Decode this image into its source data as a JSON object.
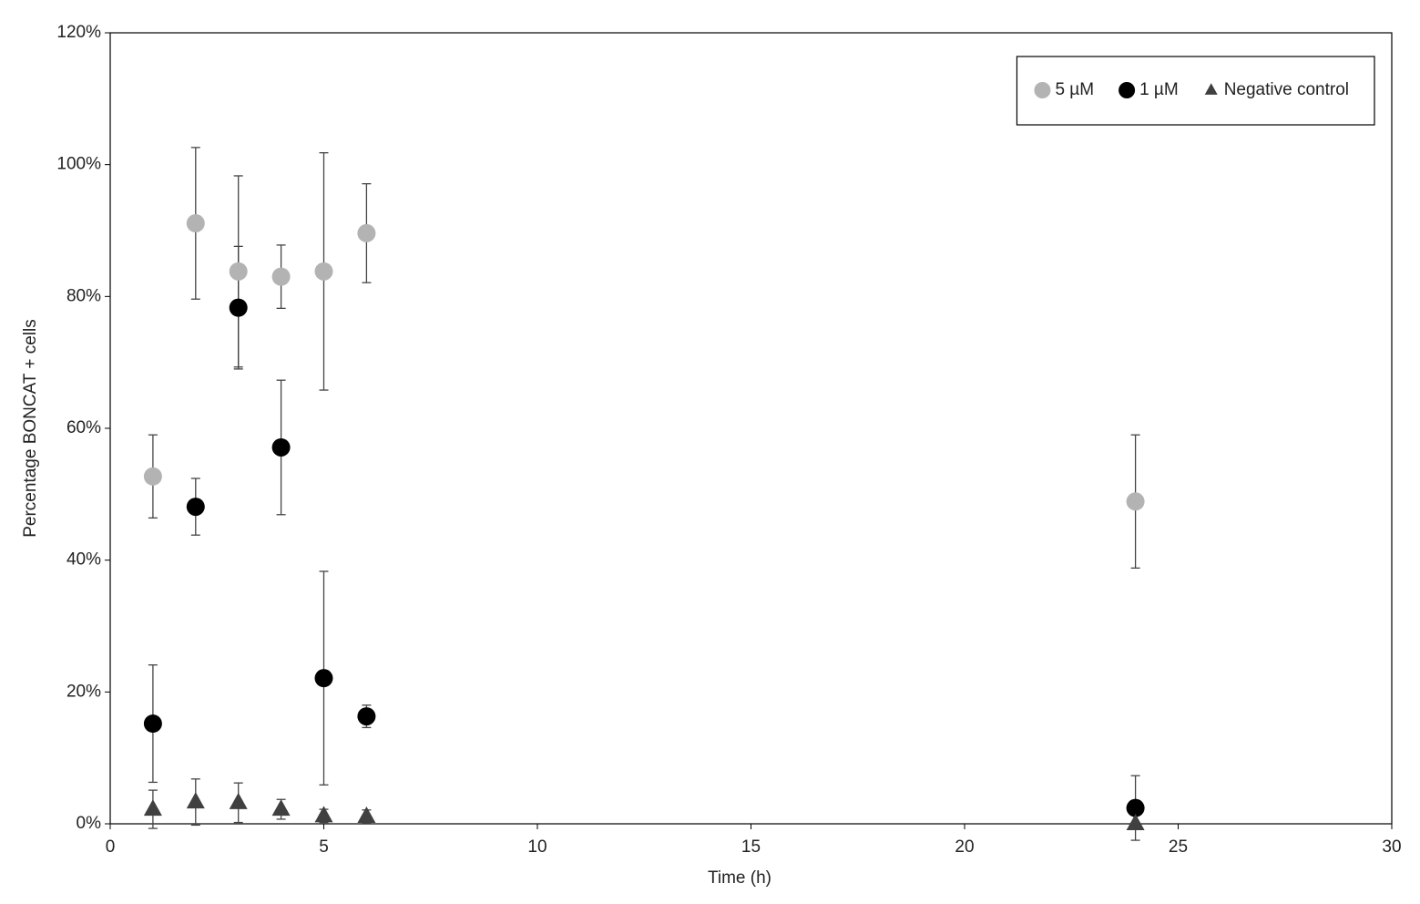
{
  "chart_data": {
    "type": "scatter",
    "x_label": "Time (h)",
    "y_label": "Percentage BONCAT + cells",
    "xlim": [
      0,
      30
    ],
    "xticks": [
      0,
      5,
      10,
      15,
      20,
      25,
      30
    ],
    "ylim": [
      0,
      120
    ],
    "yticks": [
      {
        "value": 0,
        "label": "0%"
      },
      {
        "value": 20,
        "label": "20%"
      },
      {
        "value": 40,
        "label": "40%"
      },
      {
        "value": 60,
        "label": "60%"
      },
      {
        "value": 80,
        "label": "80%"
      },
      {
        "value": 100,
        "label": "100%"
      },
      {
        "value": 120,
        "label": "120%"
      }
    ],
    "legend": "upper right",
    "series": [
      {
        "name": "5 µM",
        "color": "#b3b3b3",
        "marker": "circle",
        "x": [
          1,
          2,
          3,
          4,
          5,
          6,
          24
        ],
        "values": [
          52.7,
          91.1,
          83.8,
          83.0,
          83.8,
          89.6,
          48.9
        ],
        "errors": [
          6.3,
          11.5,
          14.5,
          4.8,
          18.0,
          7.5,
          10.1
        ]
      },
      {
        "name": "1 µM",
        "color": "#000000",
        "marker": "circle",
        "x": [
          1,
          2,
          3,
          4,
          5,
          6,
          24
        ],
        "values": [
          15.2,
          48.1,
          78.3,
          57.1,
          22.1,
          16.3,
          2.4
        ],
        "errors": [
          8.9,
          4.3,
          9.3,
          10.2,
          16.2,
          1.7,
          4.9
        ]
      },
      {
        "name": "Negative control",
        "color": "#404040",
        "marker": "triangle",
        "x": [
          1,
          2,
          3,
          4,
          5,
          6,
          24
        ],
        "values": [
          2.2,
          3.3,
          3.2,
          2.2,
          1.2,
          1.1,
          0
        ],
        "errors": [
          2.9,
          3.5,
          3.0,
          1.5,
          1.0,
          1.0,
          0
        ]
      }
    ]
  }
}
